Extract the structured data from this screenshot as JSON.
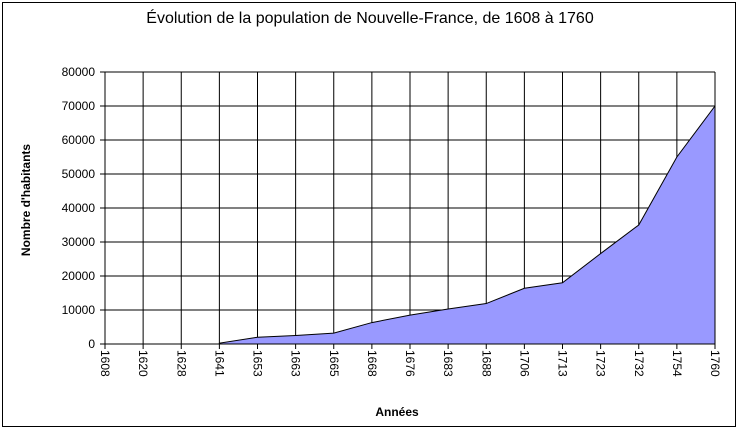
{
  "chart_data": {
    "type": "area",
    "title": "Évolution de la population de Nouvelle-France, de 1608 à 1760",
    "xlabel": "Années",
    "ylabel": "Nombre d'habitants",
    "x": [
      "1608",
      "1620",
      "1628",
      "1641",
      "1653",
      "1663",
      "1665",
      "1668",
      "1676",
      "1683",
      "1688",
      "1706",
      "1713",
      "1723",
      "1732",
      "1754",
      "1760"
    ],
    "series": [
      {
        "values": [
          null,
          null,
          null,
          240,
          2000,
          2500,
          3200,
          6300,
          8500,
          10300,
          11900,
          16400,
          18000,
          26600,
          35000,
          55000,
          70000
        ]
      }
    ],
    "ylim": [
      0,
      80000
    ],
    "yticks": [
      0,
      10000,
      20000,
      30000,
      40000,
      50000,
      60000,
      70000,
      80000
    ],
    "grid": true,
    "fill_color": "#9999ff"
  }
}
